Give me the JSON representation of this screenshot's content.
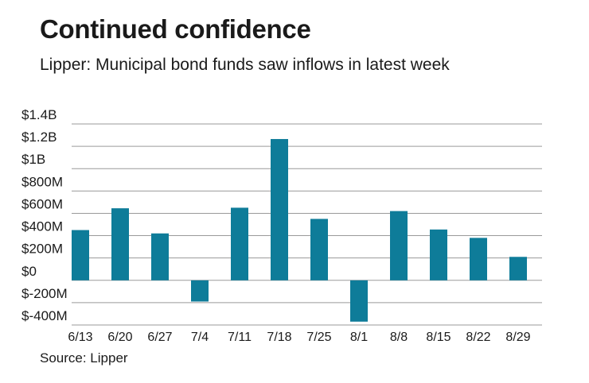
{
  "title": "Continued confidence",
  "subtitle": "Lipper: Municipal bond funds saw inflows in latest week",
  "source": "Source: Lipper",
  "chart_data": {
    "type": "bar",
    "title": "Continued confidence",
    "subtitle": "Lipper: Municipal bond funds saw inflows in latest week",
    "xlabel": "",
    "ylabel": "",
    "categories": [
      "6/13",
      "6/20",
      "6/27",
      "7/4",
      "7/11",
      "7/18",
      "7/25",
      "8/1",
      "8/8",
      "8/15",
      "8/22",
      "8/29"
    ],
    "values": [
      450,
      645,
      420,
      -190,
      650,
      1265,
      550,
      -370,
      620,
      455,
      380,
      210
    ],
    "units": "USD millions",
    "ylim": [
      -400,
      1400
    ],
    "yticks": [
      -400,
      -200,
      0,
      200,
      400,
      600,
      800,
      1000,
      1200,
      1400
    ],
    "ytick_labels": [
      "$-400M",
      "$-200M",
      "$0",
      "$200M",
      "$400M",
      "$600M",
      "$800M",
      "$1B",
      "$1.2B",
      "$1.4B"
    ],
    "grid": true,
    "bar_color": "#0e7c99",
    "grid_color": "#9a9a9a"
  }
}
